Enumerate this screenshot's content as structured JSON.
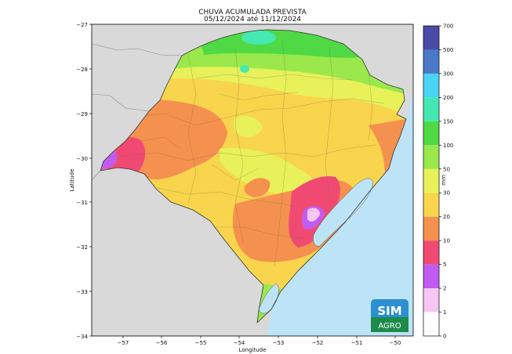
{
  "title": "CHUVA ACUMULADA PREVISTA",
  "subtitle": "05/12/2024 até 11/12/2024",
  "axes": {
    "xlabel": "Longitude",
    "ylabel": "Latitude",
    "x_ticks": [
      "−57",
      "−56",
      "−55",
      "−54",
      "−53",
      "−52",
      "−51",
      "−50"
    ],
    "y_ticks": [
      "−27",
      "−28",
      "−29",
      "−30",
      "−31",
      "−32",
      "−33",
      "−34"
    ]
  },
  "colorbar": {
    "unit": "mm",
    "levels": [
      "0",
      "1",
      "2",
      "5",
      "10",
      "20",
      "30",
      "50",
      "100",
      "150",
      "200",
      "300",
      "500",
      "700"
    ],
    "colors": [
      "#ffffff",
      "#f6c7f3",
      "#c15cf2",
      "#f14a72",
      "#f5914e",
      "#f8d54d",
      "#e8f15a",
      "#9ae84b",
      "#4fd944",
      "#46e8b2",
      "#4ad3f2",
      "#4a78c8",
      "#4a4aa8"
    ]
  },
  "logo": {
    "line1": "SIM",
    "line2": "AGRO"
  }
}
